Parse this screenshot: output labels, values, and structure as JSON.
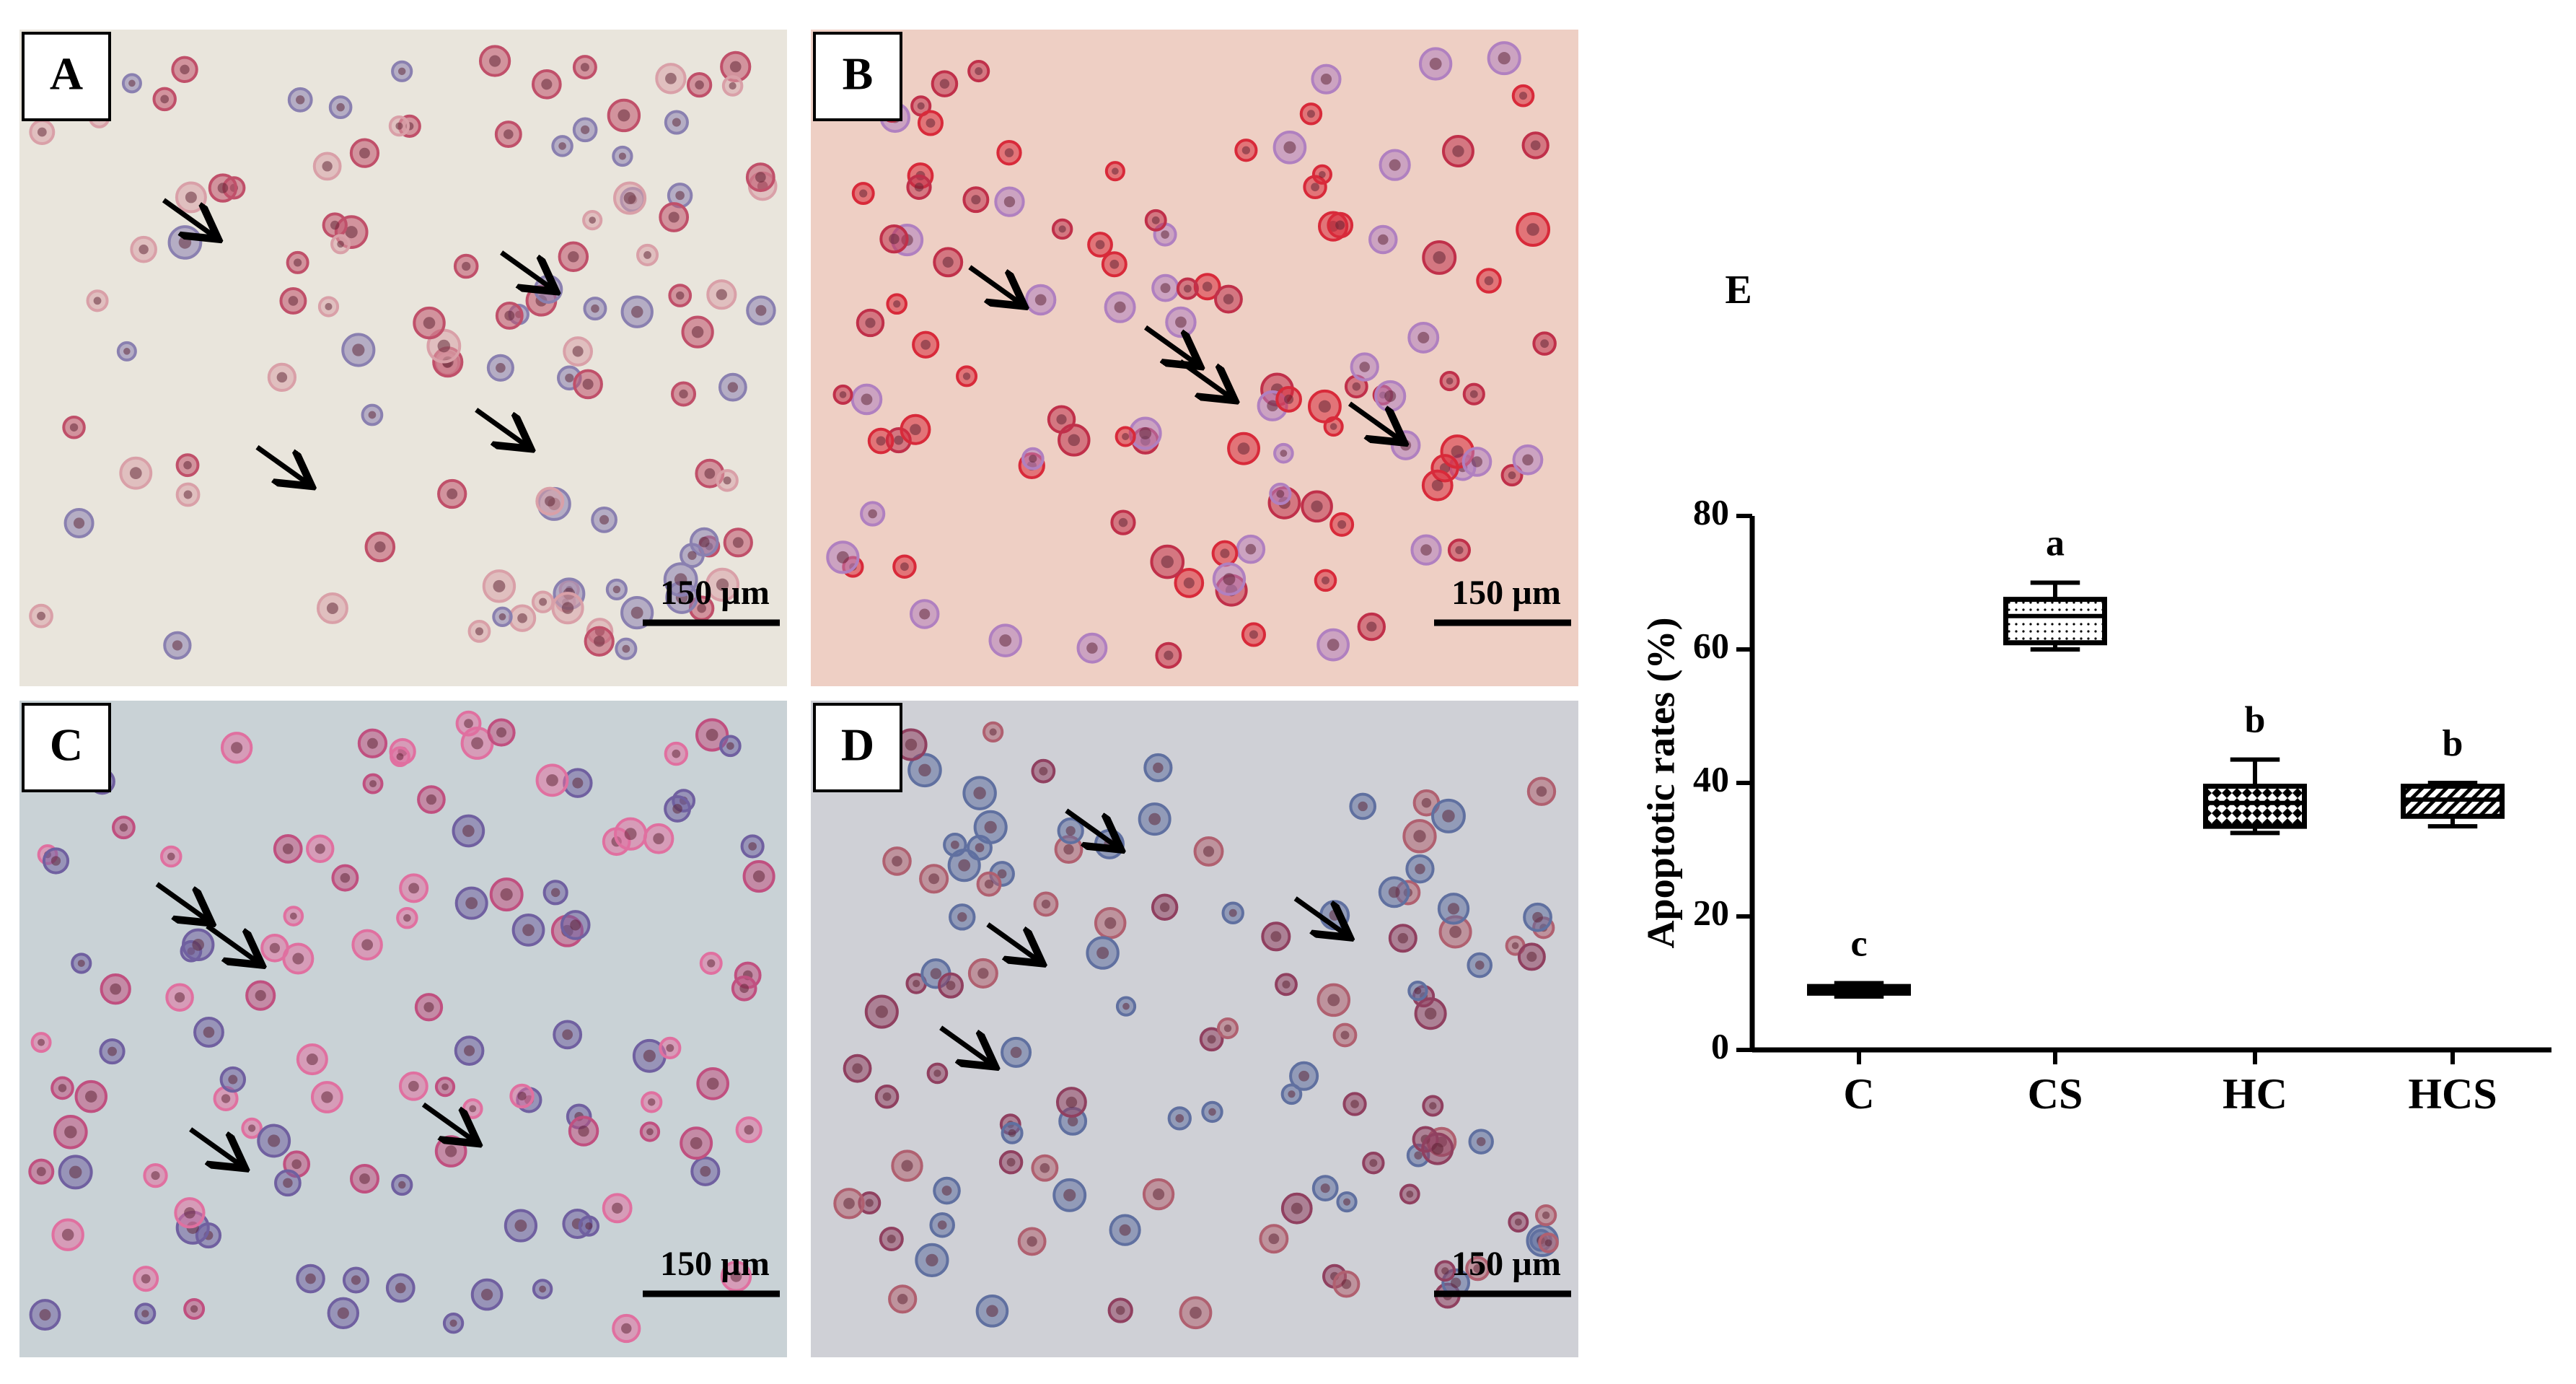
{
  "panels": [
    {
      "label": "A",
      "scale_bar": "150 µm"
    },
    {
      "label": "B",
      "scale_bar": "150 µm"
    },
    {
      "label": "C",
      "scale_bar": "150 µm"
    },
    {
      "label": "D",
      "scale_bar": "150 µm"
    }
  ],
  "chart_data": {
    "type": "box",
    "label": "E",
    "y_label": "Apoptotic rates (%)",
    "categories": [
      "C",
      "CS",
      "HC",
      "HCS"
    ],
    "boxes": [
      {
        "min": 8,
        "q1": 8.5,
        "median": 9,
        "q3": 9.5,
        "max": 10
      },
      {
        "min": 60,
        "q1": 61,
        "median": 65,
        "q3": 67.5,
        "max": 70
      },
      {
        "min": 32.5,
        "q1": 33.5,
        "median": 37,
        "q3": 39.5,
        "max": 43.5
      },
      {
        "min": 33.5,
        "q1": 35,
        "median": 37.5,
        "q3": 39.5,
        "max": 40
      }
    ],
    "annotations": [
      "c",
      "a",
      "b",
      "b"
    ],
    "color": "#000000",
    "ylim": [
      0,
      80
    ],
    "yticks": [
      0,
      20,
      40,
      60,
      80
    ]
  }
}
